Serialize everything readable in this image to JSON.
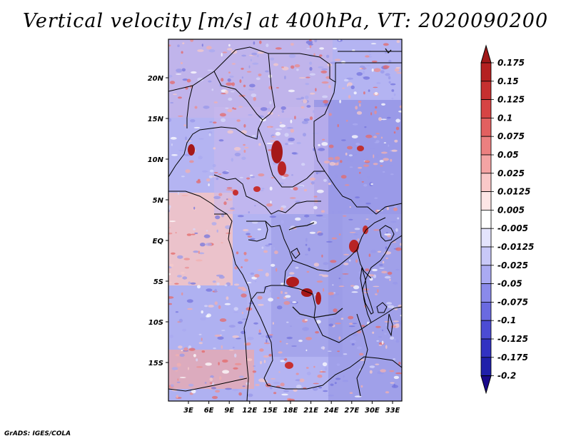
{
  "title": "Vertical velocity [m/s] at 400hPa, VT: 2020090200",
  "credit": "GrADS: IGES/COLA",
  "lat_ticks": [
    "20N",
    "15N",
    "10N",
    "5N",
    "EQ",
    "5S",
    "10S",
    "15S"
  ],
  "lon_ticks": [
    "3E",
    "6E",
    "9E",
    "12E",
    "15E",
    "18E",
    "21E",
    "24E",
    "27E",
    "30E",
    "33E"
  ],
  "colorbar": {
    "labels": [
      "0.175",
      "0.15",
      "0.125",
      "0.1",
      "0.075",
      "0.05",
      "0.025",
      "0.0125",
      "0.005",
      "-0.005",
      "-0.0125",
      "-0.025",
      "-0.05",
      "-0.075",
      "-0.1",
      "-0.125",
      "-0.175",
      "-0.2"
    ],
    "colors": [
      "#a01818",
      "#b42020",
      "#c63030",
      "#d64444",
      "#e26060",
      "#ec8080",
      "#f4a4a4",
      "#f9c8c8",
      "#fde6e6",
      "#ffffff",
      "#e4e4fc",
      "#c8c8f8",
      "#aaaaf2",
      "#8a8aea",
      "#6a6ae0",
      "#4c4cd4",
      "#3232c2",
      "#2020aa",
      "#1a0a8c"
    ]
  }
}
